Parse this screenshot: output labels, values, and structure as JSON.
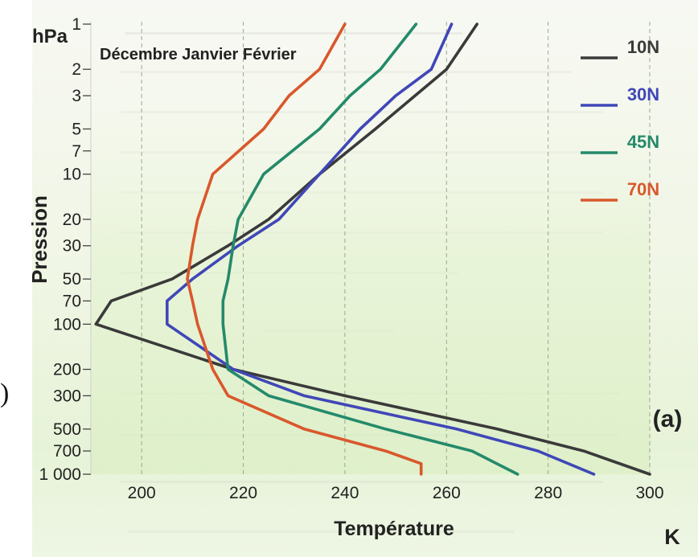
{
  "chart_data": {
    "type": "line",
    "title": "Décembre Janvier Février",
    "xlabel": "Température",
    "xunit": "K",
    "ylabel": "Pression",
    "yunit": "hPa",
    "panel_label": "(a)",
    "edge_mark": ")",
    "xlim": [
      190,
      300
    ],
    "ylim": [
      1000,
      1
    ],
    "y_scale": "log",
    "y_inverted": true,
    "grid_x": true,
    "x_ticks": [
      200,
      220,
      240,
      260,
      280,
      300
    ],
    "x_tick_labels": [
      "200",
      "220",
      "240",
      "260",
      "280",
      "300"
    ],
    "y_ticks": [
      1,
      2,
      3,
      5,
      7,
      10,
      20,
      30,
      50,
      70,
      100,
      200,
      300,
      500,
      700,
      1000
    ],
    "y_tick_labels": [
      "1",
      "2",
      "3",
      "5",
      "7",
      "10",
      "20",
      "30",
      "50",
      "70",
      "100",
      "200",
      "300",
      "500",
      "700",
      "1 000"
    ],
    "legend_position": "top-right",
    "series": [
      {
        "name": "10N",
        "color": "#3a3a3a",
        "points": [
          [
            266,
            1
          ],
          [
            260,
            2
          ],
          [
            246,
            5
          ],
          [
            235,
            10
          ],
          [
            225,
            20
          ],
          [
            217,
            30
          ],
          [
            206,
            50
          ],
          [
            194,
            70
          ],
          [
            191,
            100
          ],
          [
            218,
            200
          ],
          [
            240,
            300
          ],
          [
            270,
            500
          ],
          [
            287,
            700
          ],
          [
            300,
            1000
          ]
        ]
      },
      {
        "name": "30N",
        "color": "#3f47b8",
        "points": [
          [
            261,
            1
          ],
          [
            257,
            2
          ],
          [
            250,
            3
          ],
          [
            243,
            5
          ],
          [
            235,
            10
          ],
          [
            227,
            20
          ],
          [
            219,
            30
          ],
          [
            210,
            50
          ],
          [
            205,
            70
          ],
          [
            205,
            100
          ],
          [
            218,
            200
          ],
          [
            232,
            300
          ],
          [
            262,
            500
          ],
          [
            278,
            700
          ],
          [
            289,
            1000
          ]
        ]
      },
      {
        "name": "45N",
        "color": "#248a6a",
        "points": [
          [
            254,
            1
          ],
          [
            247,
            2
          ],
          [
            241,
            3
          ],
          [
            235,
            5
          ],
          [
            224,
            10
          ],
          [
            219,
            20
          ],
          [
            218,
            30
          ],
          [
            217,
            50
          ],
          [
            216,
            70
          ],
          [
            216,
            100
          ],
          [
            217,
            200
          ],
          [
            225,
            300
          ],
          [
            248,
            500
          ],
          [
            265,
            700
          ],
          [
            274,
            1000
          ]
        ]
      },
      {
        "name": "70N",
        "color": "#d9582c",
        "points": [
          [
            240,
            1
          ],
          [
            235,
            2
          ],
          [
            229,
            3
          ],
          [
            224,
            5
          ],
          [
            214,
            10
          ],
          [
            211,
            20
          ],
          [
            210,
            30
          ],
          [
            209,
            50
          ],
          [
            210,
            70
          ],
          [
            211,
            100
          ],
          [
            214,
            200
          ],
          [
            217,
            300
          ],
          [
            232,
            500
          ],
          [
            248,
            700
          ],
          [
            255,
            850
          ],
          [
            255,
            1000
          ]
        ]
      }
    ]
  }
}
